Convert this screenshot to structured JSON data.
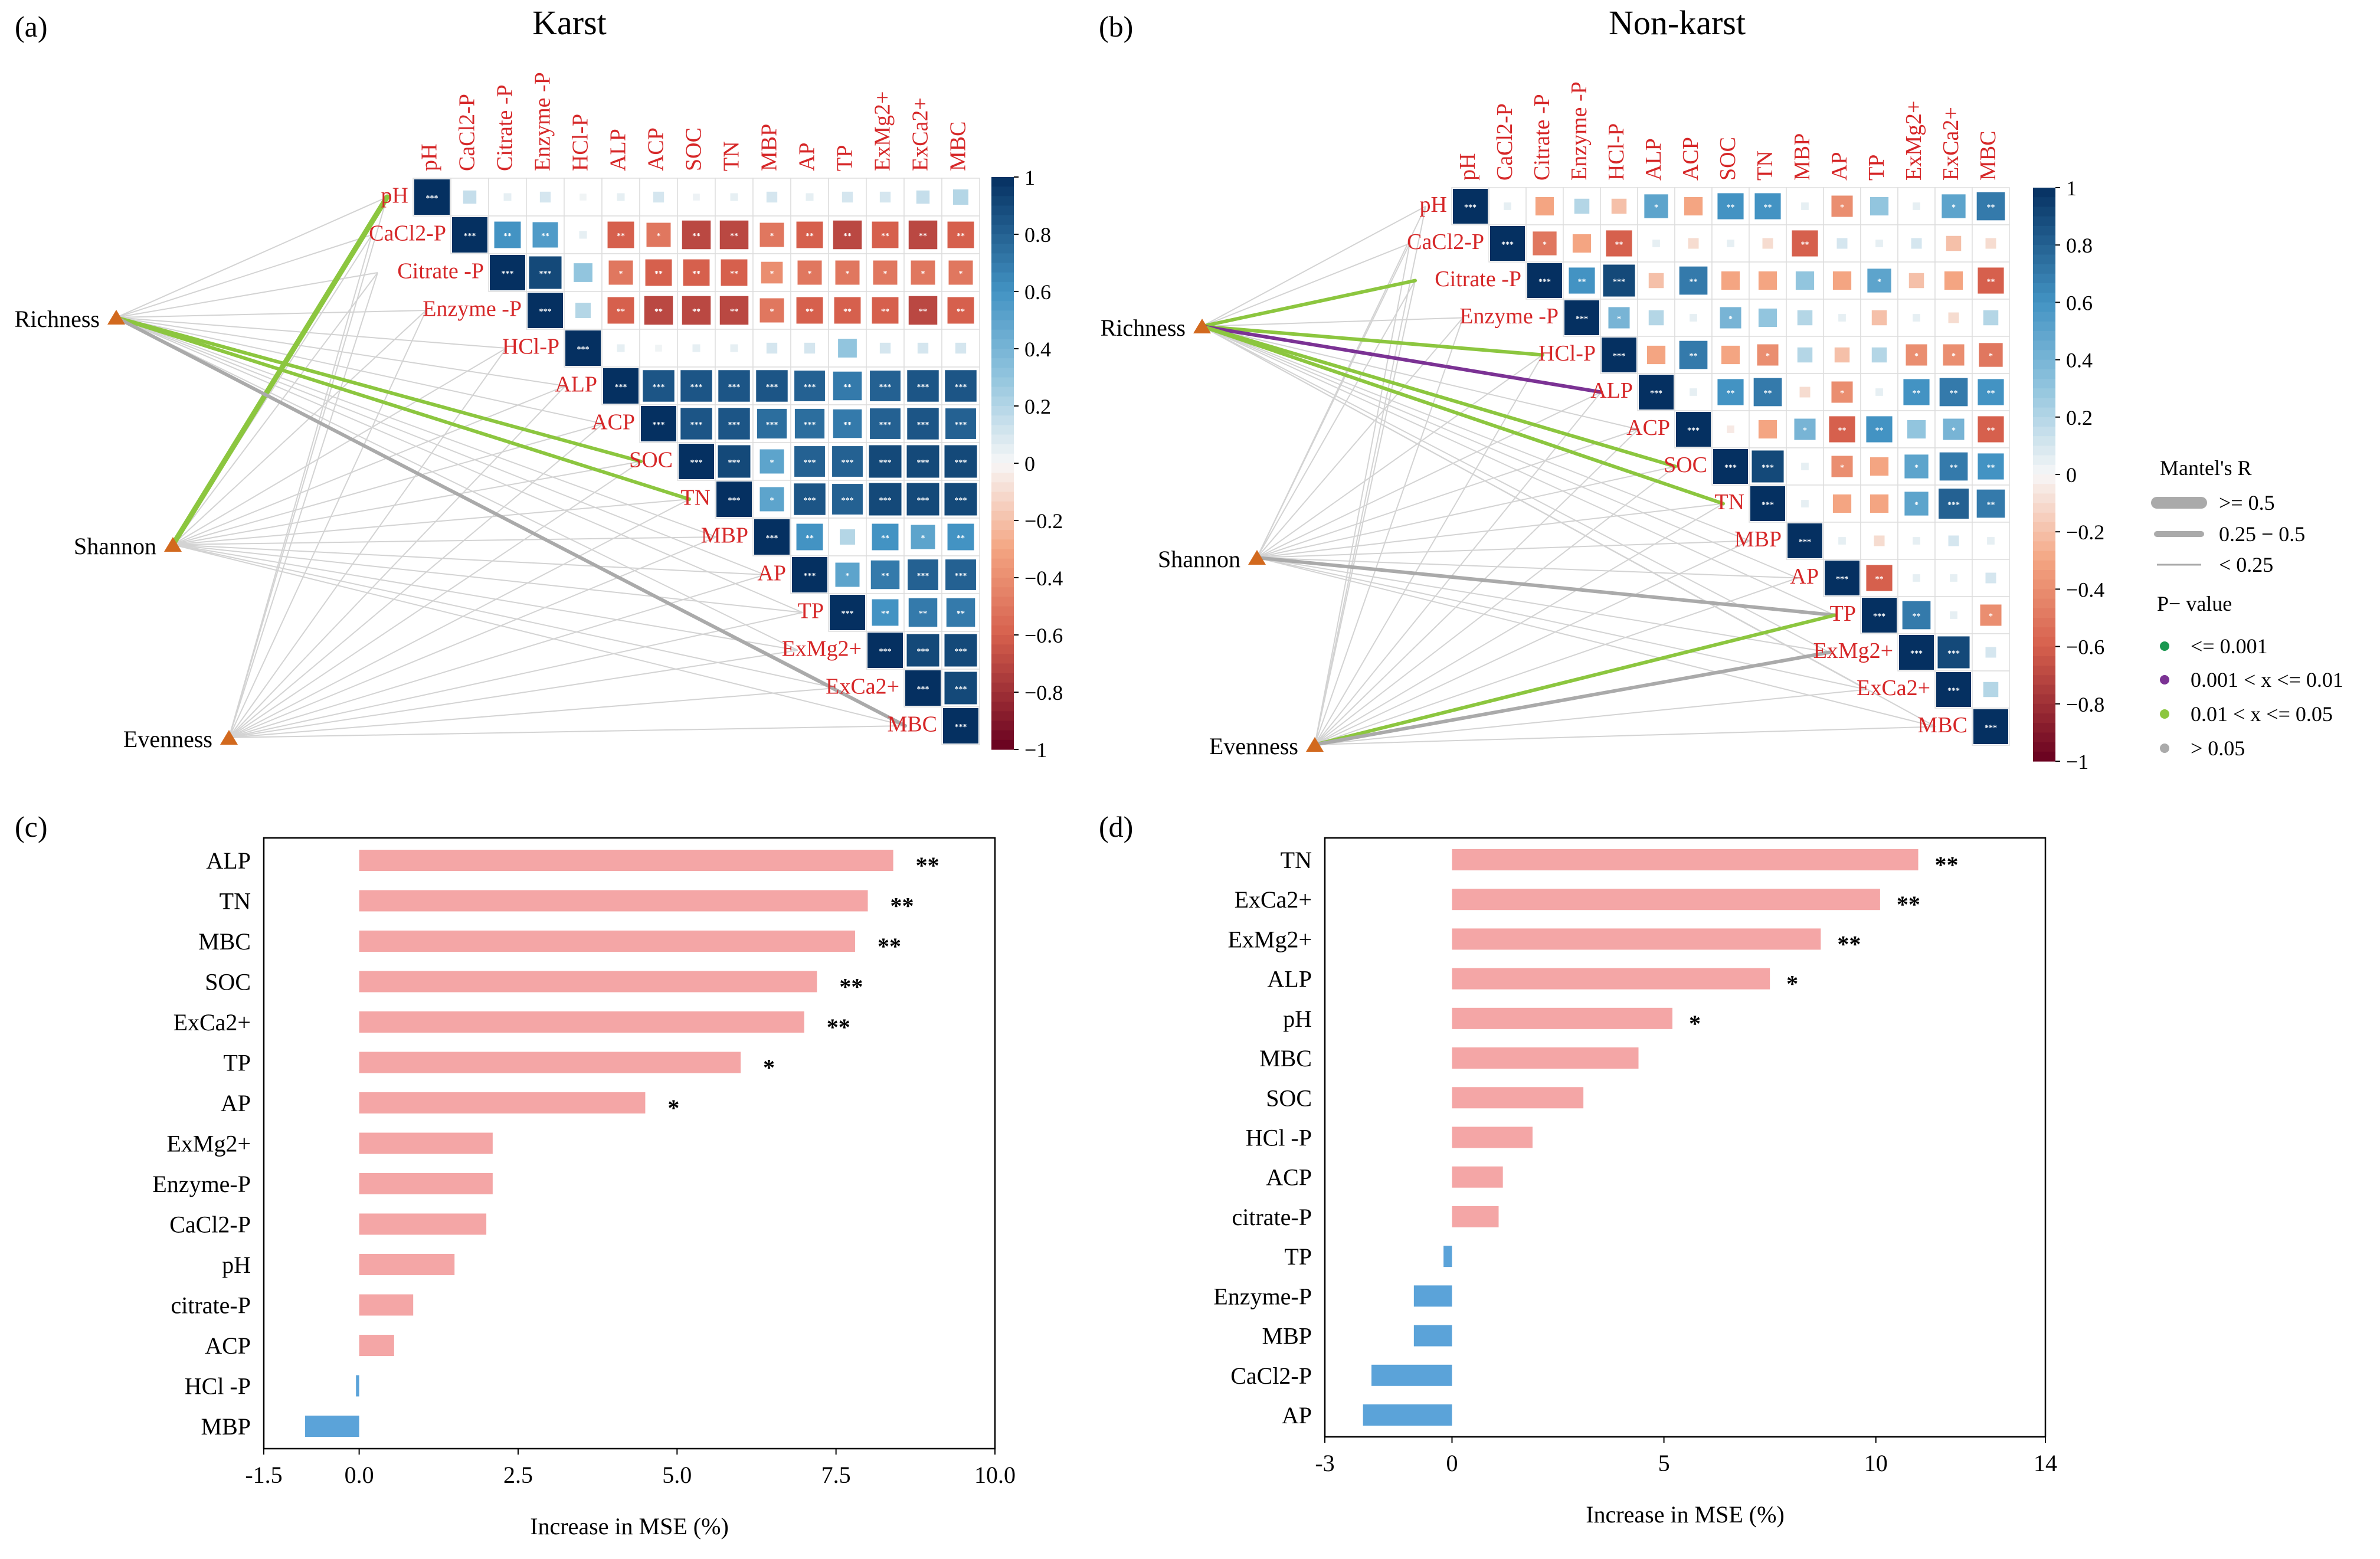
{
  "panels": {
    "a": {
      "letter": "(a)",
      "title": "Karst"
    },
    "b": {
      "letter": "(b)",
      "title": "Non-karst"
    },
    "c": {
      "letter": "(c)"
    },
    "d": {
      "letter": "(d)"
    }
  },
  "corr_labels": [
    "pH",
    "CaCl2-P",
    "Citrate -P",
    "Enzyme -P",
    "HCl-P",
    "ALP",
    "ACP",
    "SOC",
    "TN",
    "MBP",
    "AP",
    "TP",
    "ExMg2+",
    "ExCa2+",
    "MBC"
  ],
  "corr_labels_top_b": [
    "pH",
    "CaCl2-P",
    "Citrate -P",
    "Enzyme -P",
    "HCl-P",
    "ALP",
    "ACP",
    "SOC",
    "TN",
    "MBP",
    "AP",
    "TP",
    "ExMg2+",
    "ExCa2+",
    "MBC"
  ],
  "colorbar": {
    "ticks": [
      "1",
      "0.8",
      "0.6",
      "0.4",
      "0.2",
      "0",
      "−0.2",
      "−0.4",
      "−0.6",
      "−0.8",
      "−1"
    ]
  },
  "legend": {
    "mantel_title": "Mantel's R",
    "mantel_items": [
      ">= 0.5",
      "0.25 − 0.5",
      "< 0.25"
    ],
    "p_title": "P− value",
    "p_items": [
      {
        "label": "<= 0.001",
        "color": "#1a9850"
      },
      {
        "label": "0.001 < x <= 0.01",
        "color": "#7b3294"
      },
      {
        "label": "0.01 < x <= 0.05",
        "color": "#8cc63f"
      },
      {
        "label": "> 0.05",
        "color": "#aaaaaa"
      }
    ]
  },
  "diversity_nodes": [
    "Richness",
    "Shannon",
    "Evenness"
  ],
  "colors": {
    "positive_bar": "#f4a6a6",
    "negative_bar": "#5ba3d9",
    "node": "#d2691e",
    "label_red": "#d62728",
    "mantel_green": "#8cc63f",
    "mantel_purple": "#7b3294",
    "mantel_gray": "#aaaaaa"
  },
  "chart_data": [
    {
      "type": "heatmap",
      "panel": "a",
      "title": "Karst",
      "variables": [
        "pH",
        "CaCl2-P",
        "Citrate -P",
        "Enzyme -P",
        "HCl-P",
        "ALP",
        "ACP",
        "SOC",
        "TN",
        "MBP",
        "AP",
        "TP",
        "ExMg2+",
        "ExCa2+",
        "MBC"
      ],
      "row_correlations": [
        [
          1,
          0.15,
          0.05,
          0.1,
          0.02,
          0.05,
          0.1,
          0.03,
          0.05,
          0.1,
          0.05,
          0.1,
          0.1,
          0.15,
          0.2
        ],
        [
          1,
          0.6,
          0.55,
          0.05,
          -0.6,
          -0.5,
          -0.7,
          -0.7,
          -0.5,
          -0.6,
          -0.7,
          -0.6,
          -0.7,
          -0.6
        ],
        [
          1,
          0.9,
          0.3,
          -0.5,
          -0.6,
          -0.6,
          -0.6,
          -0.4,
          -0.5,
          -0.5,
          -0.5,
          -0.5,
          -0.5
        ],
        [
          1,
          0.2,
          -0.6,
          -0.7,
          -0.7,
          -0.7,
          -0.5,
          -0.6,
          -0.6,
          -0.6,
          -0.7,
          -0.6
        ],
        [
          1,
          0.05,
          0.02,
          0.05,
          0.05,
          0.1,
          0.1,
          0.3,
          0.1,
          0.1,
          0.1
        ],
        [
          1,
          0.85,
          0.85,
          0.85,
          0.85,
          0.8,
          0.7,
          0.8,
          0.85,
          0.85
        ],
        [
          1,
          0.85,
          0.85,
          0.75,
          0.75,
          0.7,
          0.8,
          0.85,
          0.8
        ],
        [
          1,
          0.9,
          0.5,
          0.8,
          0.8,
          0.9,
          0.9,
          0.9
        ],
        [
          1,
          0.5,
          0.85,
          0.8,
          0.9,
          0.9,
          0.9
        ],
        [
          1,
          0.6,
          0.2,
          0.6,
          0.5,
          0.6
        ],
        [
          1,
          0.5,
          0.7,
          0.8,
          0.8
        ],
        [
          1,
          0.6,
          0.7,
          0.7
        ],
        [
          1,
          0.9,
          0.9
        ],
        [
          1,
          0.9
        ],
        [
          1
        ]
      ],
      "diversity_indices": [
        "Richness",
        "Shannon",
        "Evenness"
      ],
      "mantel_highlighted": [
        {
          "from": "Shannon",
          "to": "pH",
          "r": ">= 0.5",
          "p": "0.01 < x <= 0.05"
        },
        {
          "from": "Richness",
          "to": "SOC",
          "r": "0.25 - 0.5",
          "p": "0.01 < x <= 0.05"
        },
        {
          "from": "Richness",
          "to": "TN",
          "r": "0.25 - 0.5",
          "p": "0.01 < x <= 0.05"
        },
        {
          "from": "Richness",
          "to": "MBC",
          "r": "0.25 - 0.5",
          "p": "> 0.05"
        }
      ]
    },
    {
      "type": "heatmap",
      "panel": "b",
      "title": "Non-karst",
      "variables": [
        "pH",
        "CaCl2-P",
        "Citrate -P",
        "Enzyme -P",
        "HCl-P",
        "ALP",
        "ACP",
        "SOC",
        "TN",
        "MBP",
        "AP",
        "TP",
        "ExMg2+",
        "ExCa2+",
        "MBC"
      ],
      "row_correlations": [
        [
          1,
          0.05,
          -0.3,
          0.2,
          -0.2,
          0.5,
          -0.3,
          0.6,
          0.6,
          0.05,
          -0.4,
          0.3,
          0.05,
          0.5,
          0.7
        ],
        [
          1,
          -0.5,
          -0.3,
          -0.6,
          0.05,
          -0.1,
          0.05,
          -0.1,
          -0.6,
          0.1,
          0.05,
          0.1,
          -0.2,
          -0.1
        ],
        [
          1,
          0.6,
          0.9,
          -0.2,
          0.7,
          -0.3,
          -0.3,
          0.3,
          -0.3,
          0.5,
          -0.2,
          -0.3,
          -0.6
        ],
        [
          1,
          0.4,
          0.2,
          0.05,
          0.4,
          0.3,
          0.2,
          0.05,
          -0.2,
          0.05,
          -0.1,
          0.2
        ],
        [
          1,
          -0.3,
          0.7,
          -0.3,
          -0.4,
          0.2,
          -0.2,
          0.2,
          -0.4,
          -0.4,
          -0.5
        ],
        [
          1,
          0.05,
          0.6,
          0.7,
          -0.1,
          -0.4,
          0.05,
          0.6,
          0.7,
          0.6
        ],
        [
          1,
          -0.05,
          -0.3,
          0.4,
          -0.6,
          0.6,
          0.3,
          0.4,
          -0.6
        ],
        [
          1,
          0.9,
          0.05,
          -0.4,
          -0.3,
          0.5,
          0.7,
          0.6
        ],
        [
          1,
          0.05,
          -0.3,
          -0.3,
          0.5,
          0.8,
          0.7
        ],
        [
          1,
          0.05,
          -0.1,
          0.05,
          0.1,
          0.05
        ],
        [
          1,
          -0.6,
          0.05,
          0.05,
          0.1
        ],
        [
          1,
          0.7,
          0.05,
          -0.4
        ],
        [
          1,
          0.9,
          0.1
        ],
        [
          1,
          0.2
        ],
        [
          1
        ]
      ],
      "diversity_indices": [
        "Richness",
        "Shannon",
        "Evenness"
      ],
      "mantel_highlighted": [
        {
          "from": "Richness",
          "to": "Citrate -P",
          "r": "0.25 - 0.5",
          "p": "0.01 < x <= 0.05"
        },
        {
          "from": "Richness",
          "to": "HCl-P",
          "r": "0.25 - 0.5",
          "p": "0.01 < x <= 0.05"
        },
        {
          "from": "Richness",
          "to": "ALP",
          "r": "0.25 - 0.5",
          "p": "0.001 < x <= 0.01"
        },
        {
          "from": "Richness",
          "to": "SOC",
          "r": "0.25 - 0.5",
          "p": "0.01 < x <= 0.05"
        },
        {
          "from": "Richness",
          "to": "TN",
          "r": "0.25 - 0.5",
          "p": "0.01 < x <= 0.05"
        },
        {
          "from": "Shannon",
          "to": "TP",
          "r": "0.25 - 0.5",
          "p": "> 0.05"
        },
        {
          "from": "Evenness",
          "to": "TP",
          "r": "0.25 - 0.5",
          "p": "0.01 < x <= 0.05"
        },
        {
          "from": "Evenness",
          "to": "ExMg2+",
          "r": "0.25 - 0.5",
          "p": "> 0.05"
        }
      ]
    },
    {
      "type": "bar",
      "panel": "c",
      "orientation": "horizontal",
      "categories": [
        "ALP",
        "TN",
        "MBC",
        "SOC",
        "ExCa2+",
        "TP",
        "AP",
        "ExMg2+",
        "Enzyme-P",
        "CaCl2-P",
        "pH",
        "citrate-P",
        "ACP",
        "HCl -P",
        "MBP"
      ],
      "values": [
        8.4,
        8.0,
        7.8,
        7.2,
        7.0,
        6.0,
        4.5,
        2.1,
        2.1,
        2.0,
        1.5,
        0.85,
        0.55,
        -0.05,
        -0.85
      ],
      "significance": [
        "**",
        "**",
        "**",
        "**",
        "**",
        "*",
        "*",
        "",
        "",
        "",
        "",
        "",
        "",
        "",
        ""
      ],
      "xlabel": "Increase  in  MSE (%)",
      "ylabel": "",
      "xlim": [
        -1.5,
        10.0
      ],
      "xticks": [
        "-1.5",
        "0.0",
        "2.5",
        "5.0",
        "7.5",
        "10.0"
      ]
    },
    {
      "type": "bar",
      "panel": "d",
      "orientation": "horizontal",
      "categories": [
        "TN",
        "ExCa2+",
        "ExMg2+",
        "ALP",
        "pH",
        "MBC",
        "SOC",
        "HCl -P",
        "ACP",
        "citrate-P",
        "TP",
        "Enzyme-P",
        "MBP",
        "CaCl2-P",
        "AP"
      ],
      "values": [
        11.0,
        10.1,
        8.7,
        7.5,
        5.2,
        4.4,
        3.1,
        1.9,
        1.2,
        1.1,
        -0.2,
        -0.9,
        -0.9,
        -1.9,
        -2.1
      ],
      "significance": [
        "**",
        "**",
        "**",
        "*",
        "*",
        "",
        "",
        "",
        "",
        "",
        "",
        "",
        "",
        "",
        ""
      ],
      "xlabel": "Increase  in  MSE (%)",
      "ylabel": "",
      "xlim": [
        -3,
        14
      ],
      "xticks": [
        "-3",
        "0",
        "5",
        "10",
        "14"
      ]
    }
  ]
}
